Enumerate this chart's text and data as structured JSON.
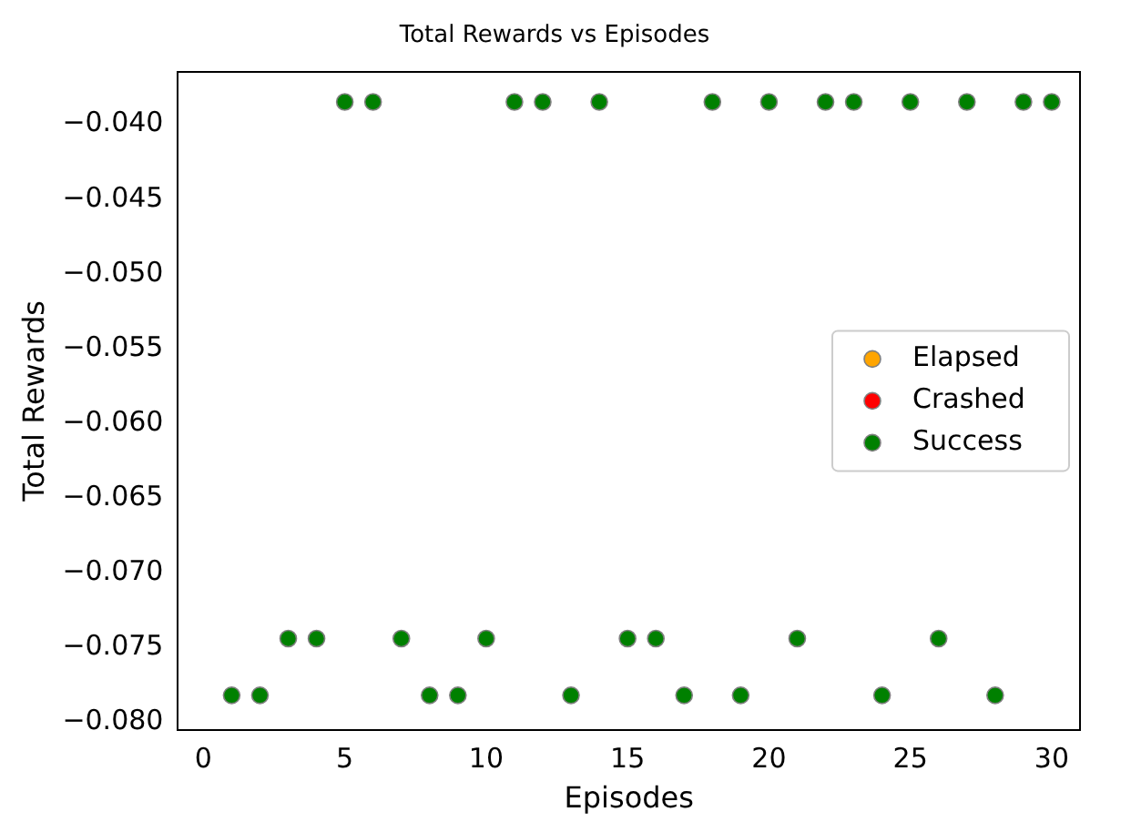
{
  "chart_data": {
    "type": "scatter",
    "title": "Total Rewards vs Episodes",
    "xlabel": "Episodes",
    "ylabel": "Total Rewards",
    "xlim": [
      -0.9,
      31
    ],
    "xticks": [
      0,
      5,
      10,
      15,
      20,
      25,
      30
    ],
    "ylim": [
      -0.0805,
      -0.0365
    ],
    "yticks": [
      {
        "value": -0.08,
        "label": "−0.080"
      },
      {
        "value": -0.075,
        "label": "−0.075"
      },
      {
        "value": -0.07,
        "label": "−0.070"
      },
      {
        "value": -0.065,
        "label": "−0.065"
      },
      {
        "value": -0.06,
        "label": "−0.060"
      },
      {
        "value": -0.055,
        "label": "−0.055"
      },
      {
        "value": -0.05,
        "label": "−0.050"
      },
      {
        "value": -0.045,
        "label": "−0.045"
      },
      {
        "value": -0.04,
        "label": "−0.040"
      }
    ],
    "grid": false,
    "legend": "right",
    "marker": "circle",
    "series": [
      {
        "name": "Elapsed",
        "color": "#ffa500"
      },
      {
        "name": "Crashed",
        "color": "#ff0000"
      },
      {
        "name": "Success",
        "color": "#008000",
        "x": [
          1,
          2,
          3,
          4,
          5,
          6,
          7,
          8,
          9,
          10,
          11,
          12,
          13,
          14,
          15,
          16,
          17,
          18,
          19,
          20,
          21,
          22,
          23,
          24,
          25,
          26,
          27,
          28,
          29,
          30
        ],
        "values": [
          -0.0782,
          -0.0782,
          -0.0744,
          -0.0744,
          -0.0385,
          -0.0385,
          -0.0744,
          -0.0782,
          -0.0782,
          -0.0744,
          -0.0385,
          -0.0385,
          -0.0782,
          -0.0385,
          -0.0744,
          -0.0744,
          -0.0782,
          -0.0385,
          -0.0782,
          -0.0385,
          -0.0744,
          -0.0385,
          -0.0385,
          -0.0782,
          -0.0385,
          -0.0744,
          -0.0385,
          -0.0782,
          -0.0385,
          -0.0385
        ]
      }
    ]
  }
}
